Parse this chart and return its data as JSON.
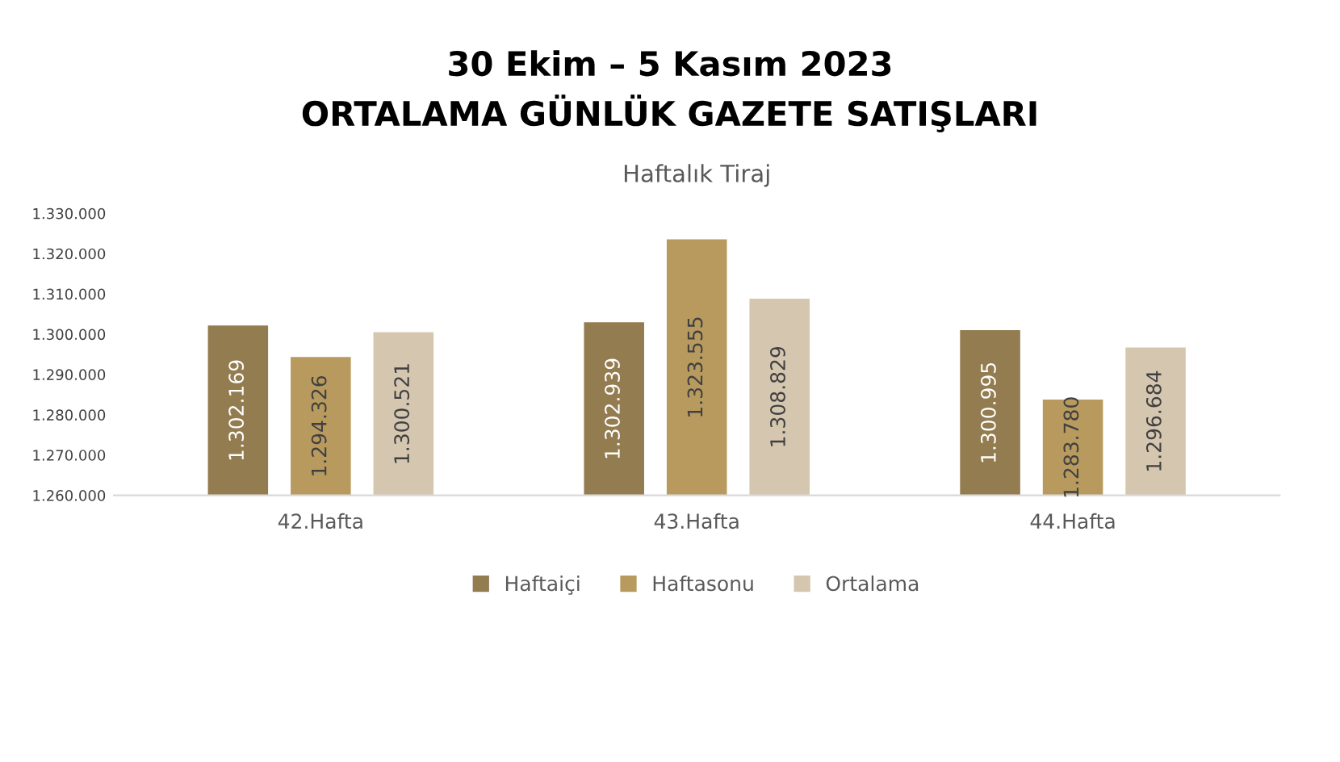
{
  "chart_data": {
    "type": "bar",
    "title": "30 Ekim – 5 Kasım 2023\nORTALAMA GÜNLÜK GAZETE SATIŞLARI",
    "subtitle": "Haftalık Tiraj",
    "categories": [
      "42.Hafta",
      "43.Hafta",
      "44.Hafta"
    ],
    "series": [
      {
        "name": "Haftaiçi",
        "color": "#937c50",
        "values": [
          1302169,
          1302939,
          1300995
        ],
        "value_labels": [
          "1.302.169",
          "1.302.939",
          "1.300.995"
        ]
      },
      {
        "name": "Haftasonu",
        "color": "#b89a5e",
        "values": [
          1294326,
          1323555,
          1283780
        ],
        "value_labels": [
          "1.294.326",
          "1.323.555",
          "1.283.780"
        ]
      },
      {
        "name": "Ortalama",
        "color": "#d5c6b0",
        "values": [
          1300521,
          1308829,
          1296684
        ],
        "value_labels": [
          "1.300.521",
          "1.308.829",
          "1.296.684"
        ]
      }
    ],
    "ylim": [
      1260000,
      1330000
    ],
    "yticks": [
      {
        "value": 1260000,
        "label": "1.260.000"
      },
      {
        "value": 1270000,
        "label": "1.270.000"
      },
      {
        "value": 1280000,
        "label": "1.280.000"
      },
      {
        "value": 1290000,
        "label": "1.290.000"
      },
      {
        "value": 1300000,
        "label": "1.300.000"
      },
      {
        "value": 1310000,
        "label": "1.310.000"
      },
      {
        "value": 1320000,
        "label": "1.320.000"
      },
      {
        "value": 1330000,
        "label": "1.330.000"
      }
    ],
    "grid": false,
    "legend": "bottom"
  }
}
